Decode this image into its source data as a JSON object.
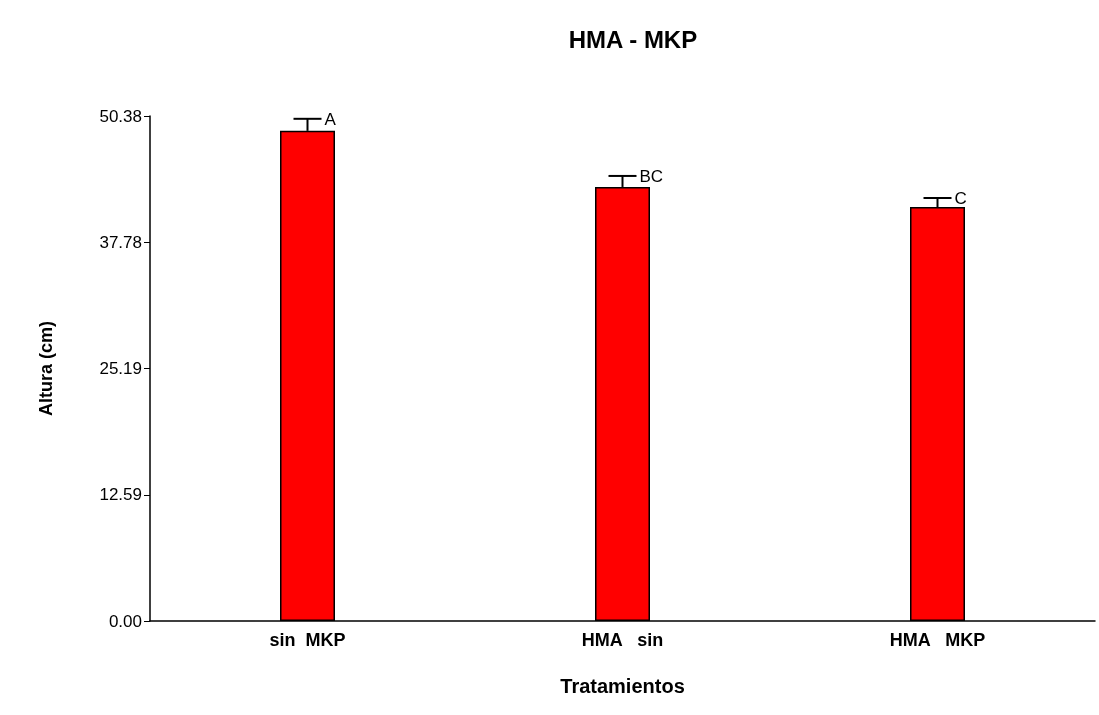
{
  "chart_data": {
    "type": "bar",
    "title": "HMA - MKP",
    "xlabel": "Tratamientos",
    "ylabel": "Altura (cm)",
    "categories": [
      "sin  MKP",
      "HMA   sin",
      "HMA   MKP"
    ],
    "values": [
      48.9,
      43.3,
      41.3
    ],
    "errors": [
      [
        48.9,
        50.1
      ],
      [
        43.3,
        44.4
      ],
      [
        41.3,
        42.2
      ]
    ],
    "color": "#ff0000",
    "ylim": [
      0,
      50.38
    ],
    "yticks": [
      {
        "value": 0,
        "label": "0.00"
      },
      12.59,
      25.19,
      37.78,
      50.38
    ],
    "grid": false,
    "annotations": [
      {
        "text": "A",
        "x": "sin  MKP",
        "y": 50.1
      },
      {
        "text": "BC",
        "x": "HMA   sin",
        "y": 44.4
      },
      {
        "text": "C",
        "x": "HMA   MKP",
        "y": 42.2
      }
    ]
  }
}
